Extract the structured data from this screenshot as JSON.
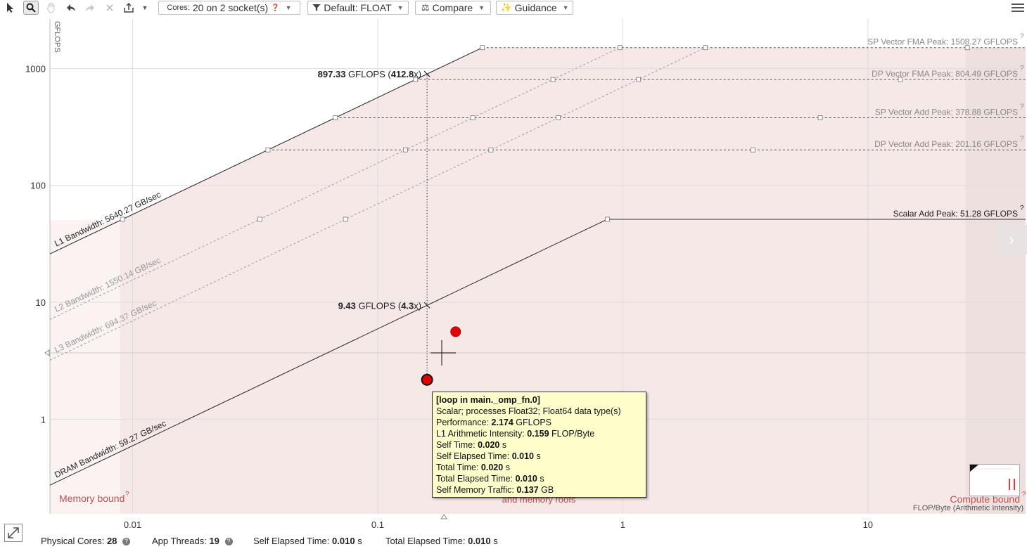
{
  "toolbar": {
    "select_icon": "cursor-arrow-icon",
    "zoom_icon": "magnifier-icon",
    "pan_icon": "hand-icon",
    "undo_icon": "undo-arrow-icon",
    "redo_icon": "redo-arrow-icon",
    "reset_icon": "close-x-icon",
    "export_icon": "export-share-icon",
    "cores_label": "Cores:",
    "cores_value": "20 on 2 socket(s)",
    "filter_label": "Default: FLOAT",
    "compare_label": "Compare",
    "guidance_label": "Guidance",
    "menu_icon": "hamburger-menu-icon"
  },
  "chart_data": {
    "type": "scatter",
    "title": "",
    "xlabel": "FLOP/Byte (Arithmetic Intensity)",
    "ylabel": "GFLOPS",
    "x_scale": "log",
    "y_scale": "log",
    "xlim": [
      0.0046,
      44
    ],
    "ylim": [
      0.155,
      2650
    ],
    "x_ticks": [
      {
        "value": 0.01,
        "label": "0.01"
      },
      {
        "value": 0.1,
        "label": "0.1"
      },
      {
        "value": 1,
        "label": "1"
      },
      {
        "value": 10,
        "label": "10"
      }
    ],
    "y_ticks": [
      {
        "value": 1,
        "label": "1"
      },
      {
        "value": 10,
        "label": "10"
      },
      {
        "value": 100,
        "label": "100"
      },
      {
        "value": 1000,
        "label": "1000"
      }
    ],
    "compute_roofs": [
      {
        "label": "SP Vector FMA Peak: 1508.27 GFLOPS",
        "value": 1508.27,
        "style": "dashed"
      },
      {
        "label": "DP Vector FMA Peak: 804.49 GFLOPS",
        "value": 804.49,
        "style": "dashed"
      },
      {
        "label": "SP Vector Add Peak: 378.88 GFLOPS",
        "value": 378.88,
        "style": "dashed"
      },
      {
        "label": "DP Vector Add Peak: 201.16 GFLOPS",
        "value": 201.16,
        "style": "dashed"
      },
      {
        "label": "Scalar Add Peak: 51.28 GFLOPS",
        "value": 51.28,
        "style": "solid"
      }
    ],
    "memory_roofs": [
      {
        "label": "L1 Bandwidth: 5640.27 GB/sec",
        "value": 5640.27,
        "style": "solid",
        "color": "#222222"
      },
      {
        "label": "L2 Bandwidth: 1550.14 GB/sec",
        "value": 1550.14,
        "style": "dashed",
        "color": "#9a9a9a"
      },
      {
        "label": "L3 Bandwidth: 694.37 GB/sec",
        "value": 694.37,
        "style": "dashed",
        "color": "#9a9a9a"
      },
      {
        "label": "DRAM Bandwidth: 59.27 GB/sec",
        "value": 59.27,
        "style": "solid",
        "color": "#222222"
      }
    ],
    "points": [
      {
        "name": "[loop in main._omp_fn.0]",
        "x": 0.159,
        "y": 2.174,
        "selected": true
      },
      {
        "name": "",
        "x": 0.208,
        "y": 5.6,
        "selected": false
      }
    ],
    "guide_annotations": [
      {
        "value_bold": "897.33",
        "unit": "GFLOPS",
        "ratio_bold": "412.8",
        "x": 0.159,
        "y": 897.33
      },
      {
        "value_bold": "9.43",
        "unit": "GFLOPS",
        "ratio_bold": "4.3",
        "x": 0.159,
        "y": 9.43
      }
    ],
    "region_labels": {
      "memory_bound": "Memory bound",
      "compute_bound": "Compute bound",
      "middle": "and memory roofs"
    },
    "colors": {
      "region_fill": "#f7e8e8",
      "region_shade": "#efe0e0",
      "point_fill": "#e00000",
      "region_text": "#c0504d",
      "grid": "#dddddd"
    }
  },
  "tooltip": {
    "title": "[loop in main._omp_fn.0]",
    "line1": "Scalar; processes Float32; Float64 data type(s)",
    "perf_label": "Performance:",
    "perf_value": "2.174",
    "perf_unit": "GFLOPS",
    "ai_label": "L1 Arithmetic Intensity:",
    "ai_value": "0.159",
    "ai_unit": "FLOP/Byte",
    "self_time_label": "Self Time:",
    "self_time_value": "0.020",
    "self_elapsed_label": "Self Elapsed Time:",
    "self_elapsed_value": "0.010",
    "total_time_label": "Total Time:",
    "total_time_value": "0.020",
    "total_elapsed_label": "Total Elapsed Time:",
    "total_elapsed_value": "0.010",
    "traffic_label": "Self Memory Traffic:",
    "traffic_value": "0.137",
    "traffic_unit": "GB",
    "sec_unit": "s"
  },
  "status": {
    "physical_cores_label": "Physical Cores:",
    "physical_cores_value": "28",
    "app_threads_label": "App Threads:",
    "app_threads_value": "19",
    "self_elapsed_label": "Self Elapsed Time:",
    "self_elapsed_value": "0.010",
    "total_elapsed_label": "Total Elapsed Time:",
    "total_elapsed_value": "0.010",
    "sec_unit": "s"
  },
  "icons": {
    "expand": "expand-diagonal-icon",
    "side_panel": "chevron-right-icon",
    "help": "question-circle-icon"
  }
}
